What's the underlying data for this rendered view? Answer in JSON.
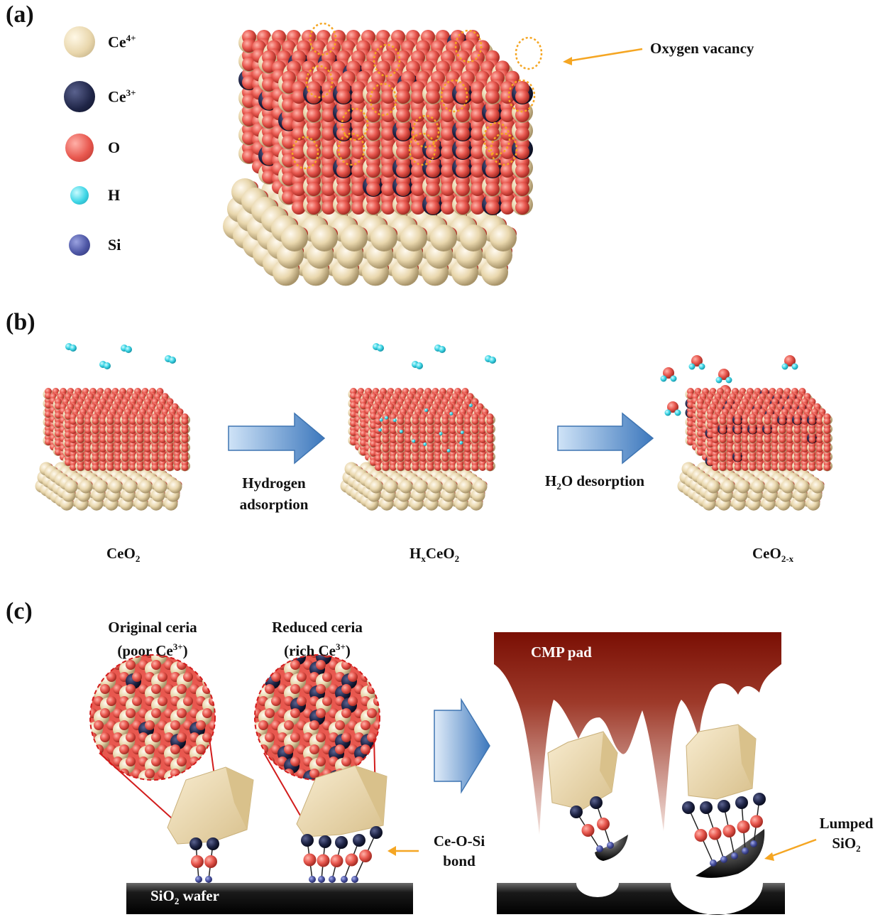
{
  "panels": {
    "a": {
      "label": "(a)",
      "legend": [
        {
          "name": "Ce",
          "sup": "4+",
          "sub": "",
          "color": "#e9d7ad",
          "icon": "ce4-atom-icon"
        },
        {
          "name": "Ce",
          "sup": "3+",
          "sub": "",
          "color": "#1f2547",
          "icon": "ce3-atom-icon"
        },
        {
          "name": "O",
          "sup": "",
          "sub": "",
          "color": "#e8584f",
          "icon": "oxygen-atom-icon"
        },
        {
          "name": "H",
          "sup": "",
          "sub": "",
          "color": "#3fd6e6",
          "icon": "hydrogen-atom-icon"
        },
        {
          "name": "Si",
          "sup": "",
          "sub": "",
          "color": "#4e57a6",
          "icon": "silicon-atom-icon"
        }
      ],
      "annotation": "Oxygen vacancy"
    },
    "b": {
      "label": "(b)",
      "step1": {
        "line1": "Hydrogen",
        "line2": "adsorption"
      },
      "step2": {
        "pre": "H",
        "sub": "2",
        "post": "O desorption"
      },
      "captions": [
        {
          "pre": "CeO",
          "sub": "2",
          "post": ""
        },
        {
          "pre": "H",
          "sub": "x",
          "post": "CeO",
          "sub2": "2"
        },
        {
          "pre": "CeO",
          "sub": "2-x",
          "post": ""
        }
      ]
    },
    "c": {
      "label": "(c)",
      "original": {
        "line1": "Original ceria",
        "line2_pre": "(poor Ce",
        "line2_sup": "3+",
        "line2_post": ")"
      },
      "reduced": {
        "line1": "Reduced ceria",
        "line2_pre": "(rich Ce",
        "line2_sup": "3+",
        "line2_post": ")"
      },
      "bond": {
        "line1": "Ce-O-Si",
        "line2": "bond"
      },
      "wafer": {
        "pre": "SiO",
        "sub": "2",
        "post": " wafer"
      },
      "pad": "CMP pad",
      "lumped": {
        "line1": "Lumped",
        "line2_pre": "SiO",
        "line2_sub": "2"
      }
    }
  },
  "colors": {
    "ce4": "#e9d7ad",
    "ce3": "#1f2547",
    "oxygen": "#e8584f",
    "hydrogen": "#3fd6e6",
    "silicon": "#4e57a6",
    "pad": "#8b1a0e",
    "arrow": "#4a86c8",
    "vacancy": "#f5a623"
  }
}
